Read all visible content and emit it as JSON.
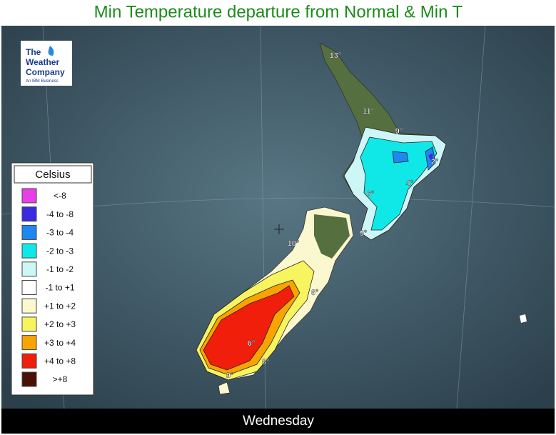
{
  "title": "Min Temperature departure from Normal & Min T",
  "logo": {
    "line1": "The",
    "line2": "Weather",
    "line3": "Company",
    "tagline": "An IBM Business"
  },
  "legend": {
    "title": "Celsius",
    "items": [
      {
        "label": "<-8",
        "color": "#e83ee8"
      },
      {
        "label": "-4  to  -8",
        "color": "#3a2ae0"
      },
      {
        "label": "-3  to  -4",
        "color": "#1e88f0"
      },
      {
        "label": "-2  to  -3",
        "color": "#10e8e8"
      },
      {
        "label": "-1  to  -2",
        "color": "#cdf6f6"
      },
      {
        "label": "-1  to  +1",
        "color": "#ffffff"
      },
      {
        "label": "+1  to  +2",
        "color": "#fbf8d0"
      },
      {
        "label": "+2  to  +3",
        "color": "#f8f460"
      },
      {
        "label": "+3  to  +4",
        "color": "#f8a400"
      },
      {
        "label": "+4  to  +8",
        "color": "#f01e0a"
      },
      {
        "label": ">+8",
        "color": "#4a1006"
      }
    ]
  },
  "map": {
    "labels": [
      "13°",
      "11°",
      "9°",
      "2°",
      "4°",
      "6°",
      "9°",
      "10°",
      "6°",
      "6°",
      "8°",
      "9°"
    ]
  },
  "footer": "Wednesday"
}
